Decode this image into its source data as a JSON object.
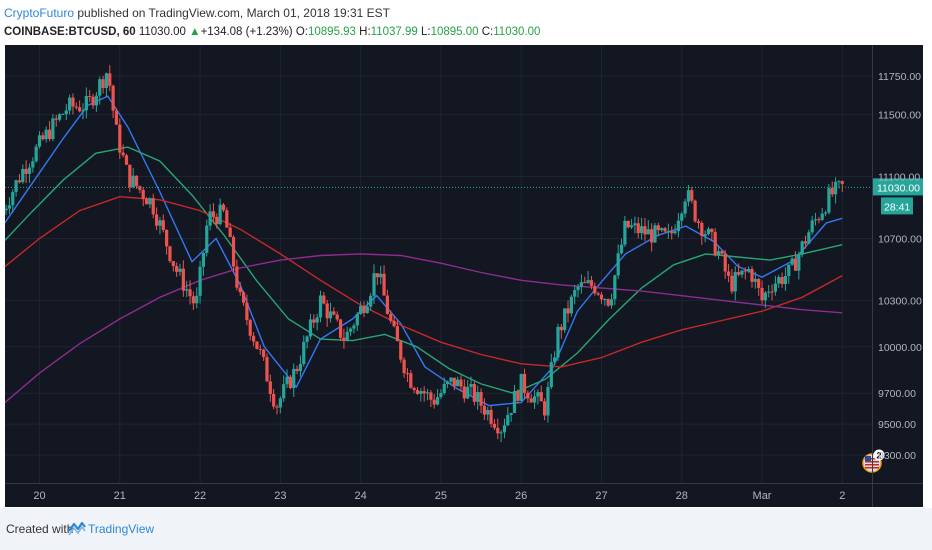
{
  "header": {
    "author": "CryptoFuturo",
    "published_text": "published on TradingView.com, March 01, 2018 19:31 EST",
    "symbol": "COINBASE:BTCUSD, 60",
    "last": "11030.00",
    "change_arrow": "▲",
    "change": "+134.08 (+1.23%)",
    "o_label": "O:",
    "o_value": "10895.93",
    "h_label": "H:",
    "h_value": "11037.99",
    "l_label": "L:",
    "l_value": "10895.00",
    "c_label": "C:",
    "c_value": "11030.00"
  },
  "footer": {
    "created_with": "Created with",
    "brand": "TradingView"
  },
  "badges": {
    "price": "11030.00",
    "timer": "28:41",
    "events_count": "2"
  },
  "colors": {
    "background": "#131722",
    "up": "#26a69a",
    "down": "#ef5350",
    "ma_fast": "#3179f5",
    "ma_mid": "#26a672",
    "ma_slow": "#c62828",
    "ma_long": "#8e2c8e",
    "price_line": "#26a69a"
  },
  "chart_data": {
    "type": "candlestick",
    "title": "",
    "xlabel": "",
    "ylabel": "",
    "ylim": [
      9120,
      11950
    ],
    "x_ticks": [
      "20",
      "21",
      "22",
      "23",
      "24",
      "25",
      "26",
      "27",
      "28",
      "Mar",
      "2"
    ],
    "y_ticks": [
      11750,
      11500,
      11100,
      10700,
      10300,
      10000,
      9700,
      9500,
      9300
    ],
    "current_price": 11030,
    "grid": true,
    "price_path": [
      [
        19.5,
        10840
      ],
      [
        19.8,
        11150
      ],
      [
        20.1,
        11380
      ],
      [
        20.35,
        11550
      ],
      [
        20.6,
        11560
      ],
      [
        20.85,
        11790
      ],
      [
        20.95,
        11400
      ],
      [
        21.1,
        11100
      ],
      [
        21.4,
        10930
      ],
      [
        21.7,
        10500
      ],
      [
        21.95,
        10260
      ],
      [
        22.1,
        10840
      ],
      [
        22.3,
        10860
      ],
      [
        22.5,
        10300
      ],
      [
        22.75,
        9950
      ],
      [
        22.95,
        9620
      ],
      [
        23.2,
        9860
      ],
      [
        23.5,
        10300
      ],
      [
        23.8,
        10050
      ],
      [
        24.1,
        10340
      ],
      [
        24.2,
        10510
      ],
      [
        24.4,
        10100
      ],
      [
        24.6,
        9800
      ],
      [
        24.9,
        9650
      ],
      [
        25.15,
        9780
      ],
      [
        25.4,
        9690
      ],
      [
        25.75,
        9480
      ],
      [
        26.0,
        9760
      ],
      [
        26.3,
        9600
      ],
      [
        26.45,
        10080
      ],
      [
        26.7,
        10380
      ],
      [
        26.9,
        10400
      ],
      [
        27.1,
        10300
      ],
      [
        27.3,
        10780
      ],
      [
        27.6,
        10730
      ],
      [
        27.85,
        10700
      ],
      [
        28.05,
        11000
      ],
      [
        28.2,
        10820
      ],
      [
        28.45,
        10620
      ],
      [
        28.6,
        10400
      ],
      [
        28.85,
        10500
      ],
      [
        29.0,
        10300
      ],
      [
        29.1,
        10400
      ],
      [
        29.35,
        10480
      ],
      [
        29.6,
        10760
      ],
      [
        29.85,
        10980
      ],
      [
        30.0,
        11030
      ]
    ],
    "series": [
      {
        "points": [
          [
            19.5,
            10750
          ],
          [
            19.9,
            11050
          ],
          [
            20.3,
            11350
          ],
          [
            20.6,
            11560
          ],
          [
            20.85,
            11620
          ],
          [
            21.1,
            11420
          ],
          [
            21.5,
            11000
          ],
          [
            21.9,
            10550
          ],
          [
            22.2,
            10700
          ],
          [
            22.5,
            10400
          ],
          [
            22.8,
            10000
          ],
          [
            23.2,
            9740
          ],
          [
            23.5,
            10050
          ],
          [
            23.9,
            10180
          ],
          [
            24.2,
            10330
          ],
          [
            24.5,
            10150
          ],
          [
            24.8,
            9870
          ],
          [
            25.2,
            9730
          ],
          [
            25.6,
            9620
          ],
          [
            26.0,
            9640
          ],
          [
            26.4,
            9870
          ],
          [
            26.7,
            10230
          ],
          [
            27.0,
            10420
          ],
          [
            27.3,
            10600
          ],
          [
            27.7,
            10720
          ],
          [
            28.05,
            10780
          ],
          [
            28.4,
            10680
          ],
          [
            28.7,
            10520
          ],
          [
            29.0,
            10450
          ],
          [
            29.4,
            10560
          ],
          [
            29.8,
            10800
          ],
          [
            30.0,
            10830
          ]
        ]
      },
      {
        "points": [
          [
            19.5,
            10650
          ],
          [
            19.9,
            10870
          ],
          [
            20.3,
            11080
          ],
          [
            20.7,
            11250
          ],
          [
            21.1,
            11290
          ],
          [
            21.5,
            11200
          ],
          [
            21.9,
            10980
          ],
          [
            22.3,
            10720
          ],
          [
            22.7,
            10430
          ],
          [
            23.1,
            10180
          ],
          [
            23.5,
            10050
          ],
          [
            23.9,
            10040
          ],
          [
            24.3,
            10080
          ],
          [
            24.7,
            10000
          ],
          [
            25.1,
            9860
          ],
          [
            25.5,
            9760
          ],
          [
            25.9,
            9700
          ],
          [
            26.3,
            9790
          ],
          [
            26.7,
            9960
          ],
          [
            27.1,
            10180
          ],
          [
            27.5,
            10380
          ],
          [
            27.9,
            10530
          ],
          [
            28.3,
            10600
          ],
          [
            28.7,
            10580
          ],
          [
            29.1,
            10560
          ],
          [
            29.5,
            10600
          ],
          [
            30.0,
            10660
          ]
        ]
      },
      {
        "points": [
          [
            19.5,
            10490
          ],
          [
            20.0,
            10700
          ],
          [
            20.5,
            10880
          ],
          [
            21.0,
            10970
          ],
          [
            21.5,
            10950
          ],
          [
            22.0,
            10880
          ],
          [
            22.5,
            10760
          ],
          [
            23.0,
            10600
          ],
          [
            23.5,
            10430
          ],
          [
            24.0,
            10270
          ],
          [
            24.5,
            10140
          ],
          [
            25.0,
            10030
          ],
          [
            25.5,
            9950
          ],
          [
            26.0,
            9890
          ],
          [
            26.5,
            9870
          ],
          [
            27.0,
            9930
          ],
          [
            27.5,
            10030
          ],
          [
            28.0,
            10110
          ],
          [
            28.5,
            10170
          ],
          [
            29.0,
            10230
          ],
          [
            29.5,
            10320
          ],
          [
            30.0,
            10460
          ]
        ]
      },
      {
        "points": [
          [
            19.5,
            9610
          ],
          [
            20.0,
            9830
          ],
          [
            20.5,
            10020
          ],
          [
            21.0,
            10180
          ],
          [
            21.5,
            10320
          ],
          [
            22.0,
            10430
          ],
          [
            22.5,
            10510
          ],
          [
            23.0,
            10560
          ],
          [
            23.5,
            10590
          ],
          [
            24.0,
            10600
          ],
          [
            24.5,
            10590
          ],
          [
            25.0,
            10540
          ],
          [
            25.5,
            10480
          ],
          [
            26.0,
            10430
          ],
          [
            26.5,
            10400
          ],
          [
            27.0,
            10380
          ],
          [
            27.5,
            10360
          ],
          [
            28.0,
            10330
          ],
          [
            28.5,
            10300
          ],
          [
            29.0,
            10270
          ],
          [
            29.5,
            10240
          ],
          [
            30.0,
            10220
          ]
        ]
      }
    ]
  }
}
